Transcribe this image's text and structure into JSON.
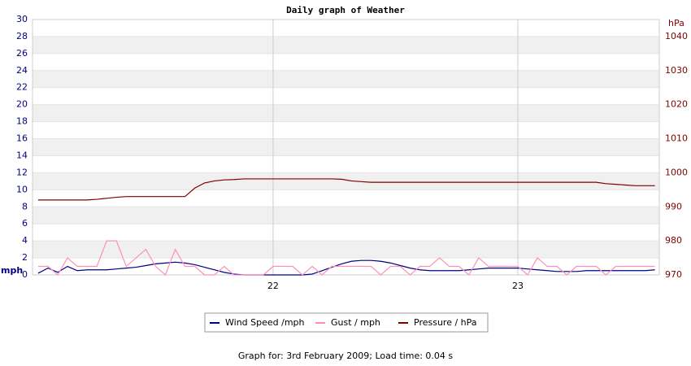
{
  "chart_data": {
    "type": "line",
    "title": "Daily graph of Weather",
    "footer": "Graph for: 3rd February 2009; Load time: 0.04 s",
    "ylabel": "mph",
    "y2label": "hPa",
    "x": [
      21.04,
      21.08,
      21.12,
      21.16,
      21.2,
      21.24,
      21.28,
      21.32,
      21.36,
      21.4,
      21.44,
      21.48,
      21.52,
      21.56,
      21.6,
      21.64,
      21.68,
      21.72,
      21.76,
      21.8,
      21.84,
      21.88,
      21.92,
      21.96,
      22,
      22.04,
      22.08,
      22.12,
      22.16,
      22.2,
      22.24,
      22.28,
      22.32,
      22.36,
      22.4,
      22.44,
      22.48,
      22.52,
      22.56,
      22.6,
      22.64,
      22.68,
      22.72,
      22.76,
      22.8,
      22.84,
      22.88,
      22.92,
      22.96,
      23,
      23.04,
      23.08,
      23.12,
      23.16,
      23.2,
      23.24,
      23.28,
      23.32,
      23.36,
      23.4,
      23.44,
      23.48,
      23.52,
      23.56
    ],
    "xlim": [
      21.017,
      23.578
    ],
    "xticks": [
      22,
      23
    ],
    "ylim": [
      0,
      30
    ],
    "yticks": [
      0,
      2,
      4,
      6,
      8,
      10,
      12,
      14,
      16,
      18,
      20,
      22,
      24,
      26,
      28,
      30
    ],
    "y2lim": [
      970,
      1045
    ],
    "y2ticks": [
      970,
      980,
      990,
      1000,
      1010,
      1020,
      1030,
      1040
    ],
    "grid": true,
    "legend": "bottom",
    "series": [
      {
        "name": "Wind Speed /mph",
        "color": "#000080",
        "values": [
          0.2,
          0.8,
          0.3,
          1,
          0.5,
          0.6,
          0.6,
          0.6,
          0.7,
          0.8,
          0.9,
          1.1,
          1.3,
          1.4,
          1.5,
          1.4,
          1.2,
          0.9,
          0.6,
          0.3,
          0.1,
          0,
          0,
          0,
          0,
          0,
          0,
          0,
          0.1,
          0.5,
          0.9,
          1.3,
          1.6,
          1.7,
          1.7,
          1.6,
          1.4,
          1.1,
          0.8,
          0.6,
          0.5,
          0.5,
          0.5,
          0.5,
          0.6,
          0.7,
          0.8,
          0.8,
          0.8,
          0.8,
          0.7,
          0.6,
          0.5,
          0.4,
          0.4,
          0.4,
          0.5,
          0.5,
          0.5,
          0.5,
          0.5,
          0.5,
          0.5,
          0.6
        ]
      },
      {
        "name": "Gust / mph",
        "color": "#ff8fb8",
        "values": [
          1,
          1,
          0,
          2,
          1,
          1,
          1,
          4,
          4,
          1,
          2,
          3,
          1,
          0,
          3,
          1,
          1,
          0,
          0,
          1,
          0,
          0,
          0,
          0,
          1,
          1,
          1,
          0,
          1,
          0,
          1,
          1,
          1,
          1,
          1,
          0,
          1,
          1,
          0,
          1,
          1,
          2,
          1,
          1,
          0,
          2,
          1,
          1,
          1,
          1,
          0,
          2,
          1,
          1,
          0,
          1,
          1,
          1,
          0,
          1,
          1,
          1,
          1,
          1
        ]
      },
      {
        "name": "Pressure / hPa",
        "color": "#800000",
        "axis": "y2",
        "values": [
          992,
          992,
          992,
          992,
          992,
          992,
          992.2,
          992.5,
          992.8,
          993,
          993,
          993,
          993,
          993,
          993,
          993,
          995.5,
          997,
          997.6,
          997.9,
          998,
          998.2,
          998.2,
          998.2,
          998.2,
          998.2,
          998.2,
          998.2,
          998.2,
          998.2,
          998.2,
          998.1,
          997.6,
          997.4,
          997.2,
          997.2,
          997.2,
          997.2,
          997.2,
          997.2,
          997.2,
          997.2,
          997.2,
          997.2,
          997.2,
          997.2,
          997.2,
          997.2,
          997.2,
          997.2,
          997.2,
          997.2,
          997.2,
          997.2,
          997.2,
          997.2,
          997.2,
          997.2,
          996.8,
          996.6,
          996.4,
          996.2,
          996.2,
          996.2
        ]
      }
    ]
  }
}
